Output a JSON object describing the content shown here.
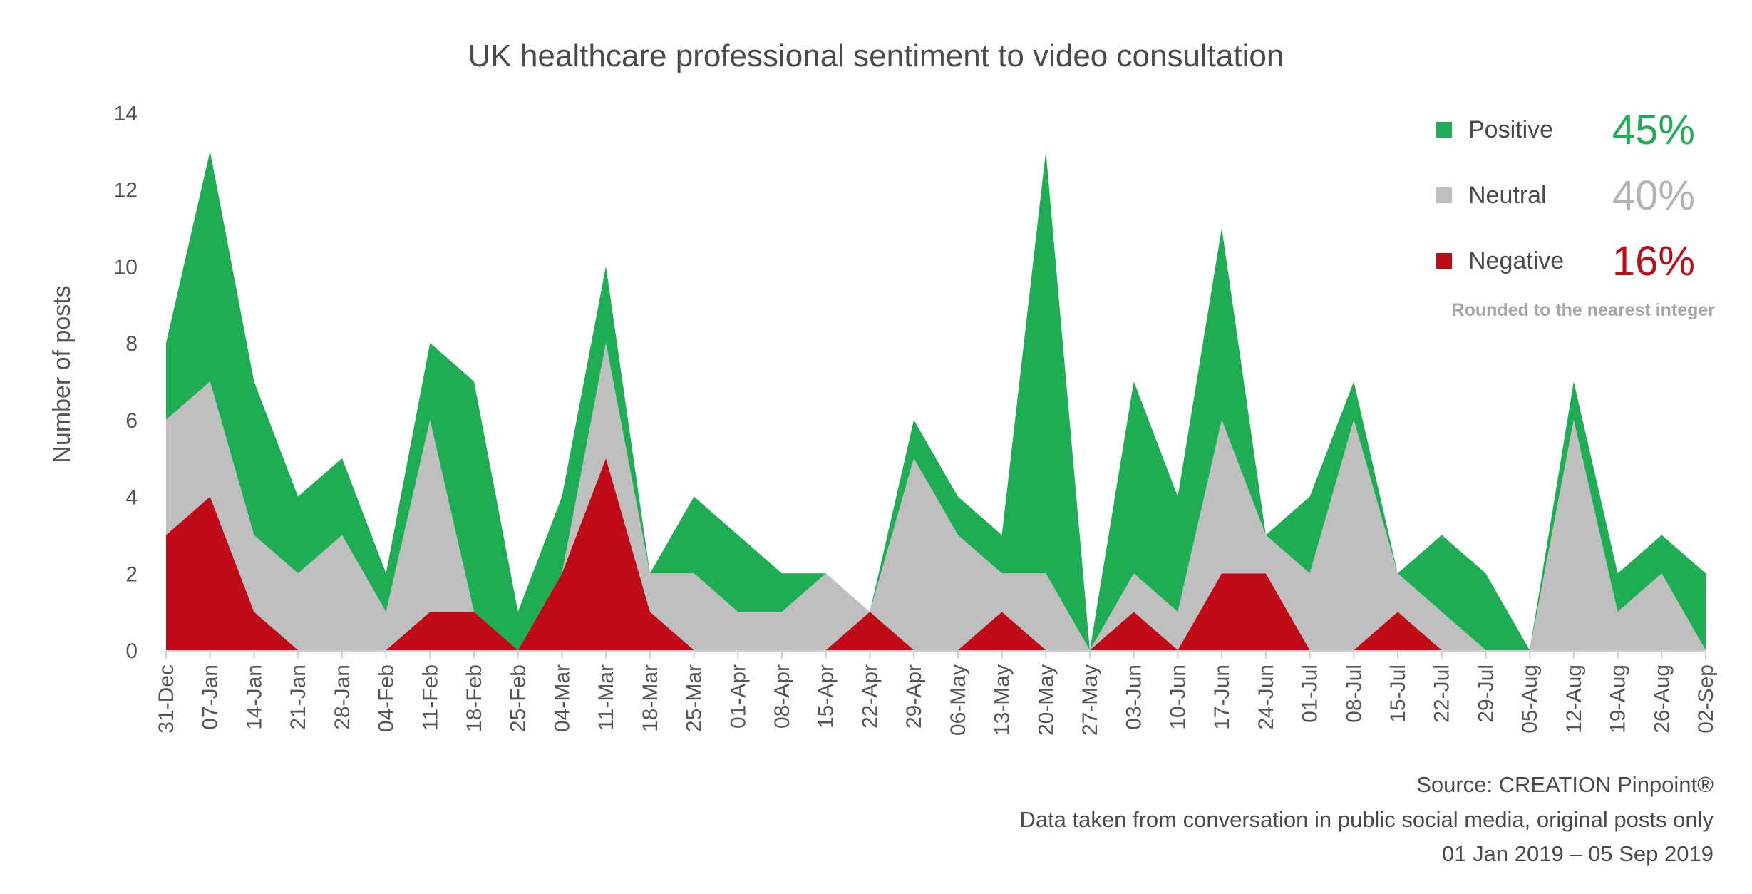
{
  "chart_data": {
    "type": "area",
    "stacked": true,
    "title": "UK healthcare professional sentiment to video consultation",
    "xlabel": "",
    "ylabel": "Number of posts",
    "ylim": [
      0,
      14
    ],
    "yticks": [
      0,
      2,
      4,
      6,
      8,
      10,
      12,
      14
    ],
    "grid": false,
    "legend_position": "top-right",
    "categories": [
      "31-Dec",
      "07-Jan",
      "14-Jan",
      "21-Jan",
      "28-Jan",
      "04-Feb",
      "11-Feb",
      "18-Feb",
      "25-Feb",
      "04-Mar",
      "11-Mar",
      "18-Mar",
      "25-Mar",
      "01-Apr",
      "08-Apr",
      "15-Apr",
      "22-Apr",
      "29-Apr",
      "06-May",
      "13-May",
      "20-May",
      "27-May",
      "03-Jun",
      "10-Jun",
      "17-Jun",
      "24-Jun",
      "01-Jul",
      "08-Jul",
      "15-Jul",
      "22-Jul",
      "29-Jul",
      "05-Aug",
      "12-Aug",
      "19-Aug",
      "26-Aug",
      "02-Sep"
    ],
    "series": [
      {
        "name": "Negative",
        "color": "#c00a17",
        "values": [
          3,
          4,
          1,
          0,
          0,
          0,
          1,
          1,
          0,
          2,
          5,
          1,
          0,
          0,
          0,
          0,
          1,
          0,
          0,
          1,
          0,
          0,
          1,
          0,
          2,
          2,
          0,
          0,
          1,
          0,
          0,
          0,
          0,
          0,
          0,
          0
        ]
      },
      {
        "name": "Neutral",
        "color": "#bfbfbf",
        "values": [
          3,
          3,
          2,
          2,
          3,
          1,
          5,
          0,
          0,
          0,
          3,
          1,
          2,
          1,
          1,
          2,
          0,
          5,
          3,
          1,
          2,
          0,
          1,
          1,
          4,
          1,
          2,
          6,
          1,
          1,
          0,
          0,
          6,
          1,
          2,
          0
        ]
      },
      {
        "name": "Positive",
        "color": "#1fad54",
        "values": [
          2,
          6,
          4,
          2,
          2,
          1,
          2,
          6,
          1,
          2,
          2,
          0,
          2,
          2,
          1,
          0,
          0,
          1,
          1,
          1,
          11,
          0,
          5,
          3,
          5,
          0,
          2,
          1,
          0,
          2,
          2,
          0,
          1,
          1,
          1,
          2
        ]
      }
    ]
  },
  "legend": {
    "items": [
      {
        "label": "Positive",
        "percent": "45%",
        "color": "#1fad54",
        "text_color": "#1fad54"
      },
      {
        "label": "Neutral",
        "percent": "40%",
        "color": "#bfbfbf",
        "text_color": "#b3b3b3"
      },
      {
        "label": "Negative",
        "percent": "16%",
        "color": "#c00a17",
        "text_color": "#c00a17"
      }
    ],
    "note": "Rounded to the nearest integer"
  },
  "source": {
    "line1": "Source: CREATION Pinpoint®",
    "line2": "Data taken from conversation in public social media, original posts only",
    "line3": "01 Jan 2019 – 05 Sep 2019"
  },
  "colors": {
    "axis": "#d0d0d0",
    "text": "#555555"
  }
}
